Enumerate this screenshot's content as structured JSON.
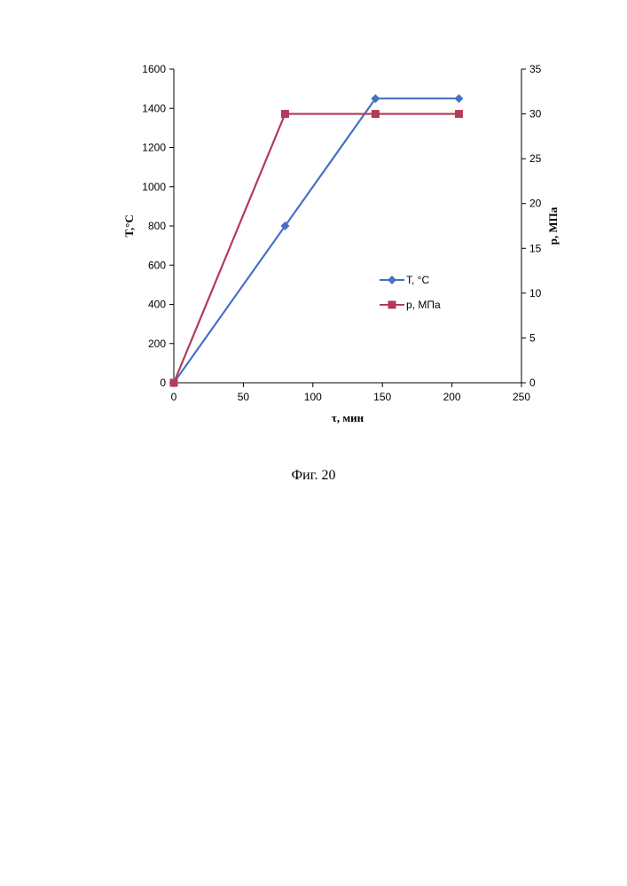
{
  "caption": "Фиг. 20",
  "chart_data": {
    "type": "line",
    "xlabel": "τ, мин",
    "ylabel_left": "T,°C",
    "ylabel_right": "p, МПа",
    "xlim": [
      0,
      250
    ],
    "xticks": [
      0,
      50,
      100,
      150,
      200,
      250
    ],
    "ylim_left": [
      0,
      1600
    ],
    "yticks_left": [
      0,
      200,
      400,
      600,
      800,
      1000,
      1200,
      1400,
      1600
    ],
    "ylim_right": [
      0,
      35
    ],
    "yticks_right": [
      0,
      5,
      10,
      15,
      20,
      25,
      30,
      35
    ],
    "grid": false,
    "legend_position": "center-right",
    "series": [
      {
        "name": "T, °C",
        "axis": "left",
        "color": "#4472C4",
        "marker": "diamond",
        "x": [
          0,
          80,
          145,
          205
        ],
        "y": [
          0,
          800,
          1450,
          1450
        ]
      },
      {
        "name": "p, МПа",
        "axis": "right",
        "color": "#B23A5B",
        "marker": "square",
        "x": [
          0,
          80,
          145,
          205
        ],
        "y": [
          0,
          30,
          30,
          30
        ]
      }
    ]
  }
}
